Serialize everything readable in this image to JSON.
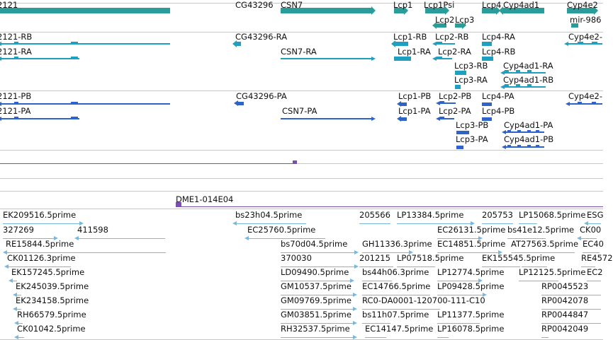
{
  "colors": {
    "gene": "#2a9d9a",
    "mrna": "#1fa0c0",
    "cds": "#2e64c8",
    "clone": "#7a4fb0",
    "est": "#79b8de",
    "divider": "#c8c8c8",
    "text": "#111111"
  },
  "labels": {
    "g1": "2121",
    "g2": "CG43296",
    "g3": "CSN7",
    "g4": "Lcp1",
    "g5": "Lcp1Psi",
    "g6": "Lcp4",
    "g7": "Cyp4ad1",
    "g8": "Cyp4e2",
    "g9": "Lcp2",
    "g10": "Lcp3",
    "g11": "mir-986",
    "m1": "2121-RB",
    "m2": "2121-RA",
    "m3": "CG43296-RA",
    "m4": "CSN7-RA",
    "m5": "Lcp1-RB",
    "m6": "Lcp1-RA",
    "m7": "Lcp2-RB",
    "m8": "Lcp2-RA",
    "m9": "Lcp4-RA",
    "m10": "Lcp4-RB",
    "m11": "Lcp3-RB",
    "m12": "Lcp3-RA",
    "m13": "Cyp4ad1-RA",
    "m14": "Cyp4ad1-RB",
    "m15": "Cyp4e2-",
    "p1": "2121-PB",
    "p2": "2121-PA",
    "p3": "CG43296-PA",
    "p4": "CSN7-PA",
    "p5": "Lcp1-PB",
    "p6": "Lcp1-PA",
    "p7": "Lcp2-PB",
    "p8": "Lcp2-PA",
    "p9": "Lcp4-PA",
    "p10": "Lcp4-PB",
    "p11": "Lcp3-PB",
    "p12": "Lcp3-PA",
    "p13": "Cyp4ad1-PA",
    "p14": "Cyp4ad1-PB",
    "p15": "Cyp4e2-",
    "c1": "DME1-014E04",
    "e1": "EK209516.5prime",
    "e2": "bs23h04.5prime",
    "e3": "205566",
    "e4": "LP13384.5prime",
    "e5": "205753",
    "e6": "LP15068.5prime",
    "e7": "ESG",
    "e8": "327269",
    "e9": "411598",
    "e10": "EC25760.5prime",
    "e11": "EC26131.5prime",
    "e12": "bs41e12.5prime",
    "e13": "CK00",
    "e14": "RE15844.5prime",
    "e15": "bs70d04.5prime",
    "e16": "GH11336.3prime",
    "e17": "EC14851.5prime",
    "e18": "AT27563.5prime",
    "e19": "EC40",
    "e20": "CK01126.3prime",
    "e21": "370030",
    "e22": "201215",
    "e23": "LP07518.5prime",
    "e24": "EK155545.5prime",
    "e25": "RE4572",
    "e26": "EK157245.5prime",
    "e27": "LD09490.5prime",
    "e28": "bs44h06.3prime",
    "e29": "LP12774.5prime",
    "e30": "LP12125.5prime",
    "e31": "EC2",
    "e32": "EK245039.5prime",
    "e33": "GM10537.5prime",
    "e34": "EC14766.5prime",
    "e35": "LP09428.5prime",
    "e36": "RP0045523",
    "e37": "EK234158.5prime",
    "e38": "GM09769.5prime",
    "e39": "RC0-DA0001-120700-111-C10",
    "e40": "RP0042078",
    "e41": "RH66579.5prime",
    "e42": "GM03851.5prime",
    "e43": "bs11h07.5prime",
    "e44": "LP11377.5prime",
    "e45": "RP0044847",
    "e46": "CK01042.5prime",
    "e47": "RH32537.5prime",
    "e48": "EC14147.5prime",
    "e49": "LP16078.5prime",
    "e50": "RP0042049"
  }
}
